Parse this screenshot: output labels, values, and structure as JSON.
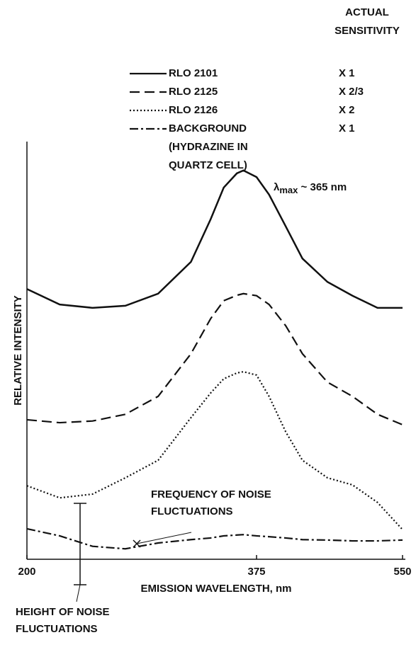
{
  "chart_data": {
    "type": "line",
    "sensitivity_header": "ACTUAL SENSITIVITY",
    "x": [
      200,
      225,
      250,
      275,
      300,
      325,
      340,
      350,
      360,
      365,
      375,
      390,
      410,
      430,
      460,
      490,
      520,
      550
    ],
    "series": [
      {
        "name": "RLO 2101",
        "sensitivity": "X 1",
        "style": "solid",
        "color": "#111111",
        "values": [
          64.7,
          61.0,
          60.2,
          60.7,
          63.6,
          71.2,
          81.4,
          89.0,
          92.4,
          93.1,
          91.5,
          87.3,
          79.7,
          72.0,
          66.4,
          63.1,
          60.2,
          60.2
        ]
      },
      {
        "name": "RLO 2125",
        "sensitivity": "X 2/3",
        "style": "dashed",
        "color": "#111111",
        "values": [
          33.4,
          32.7,
          33.1,
          34.7,
          39.0,
          49.2,
          57.6,
          61.9,
          63.2,
          63.6,
          63.1,
          61.0,
          55.9,
          49.2,
          42.4,
          39.0,
          34.7,
          32.2
        ]
      },
      {
        "name": "RLO 2126",
        "sensitivity": "X 2",
        "style": "dotted",
        "color": "#111111",
        "values": [
          17.6,
          14.7,
          15.6,
          19.5,
          23.7,
          33.9,
          39.8,
          43.2,
          44.6,
          44.9,
          44.1,
          39.0,
          30.5,
          23.7,
          19.5,
          17.8,
          13.6,
          7.1
        ]
      },
      {
        "name": "BACKGROUND (HYDRAZINE IN QUARTZ CELL)",
        "sensitivity": "X 1",
        "style": "dashdot",
        "color": "#111111",
        "values": [
          7.3,
          5.6,
          3.1,
          2.5,
          3.9,
          4.7,
          5.1,
          5.6,
          5.8,
          5.9,
          5.6,
          5.4,
          5.1,
          4.7,
          4.6,
          4.4,
          4.4,
          4.6
        ]
      }
    ],
    "xlim": [
      200,
      550
    ],
    "xticks": [
      200,
      375,
      550
    ],
    "ylim": [
      0,
      100
    ],
    "x_label": "EMISSION WAVELENGTH, nm",
    "y_label": "RELATIVE INTENSITY",
    "lambda_max": {
      "symbol": "λ",
      "sub": "max",
      "rest": "~ 365 nm"
    },
    "annotations": [
      "FREQUENCY OF NOISE FLUCTUATIONS",
      "HEIGHT OF NOISE FLUCTUATIONS"
    ]
  }
}
